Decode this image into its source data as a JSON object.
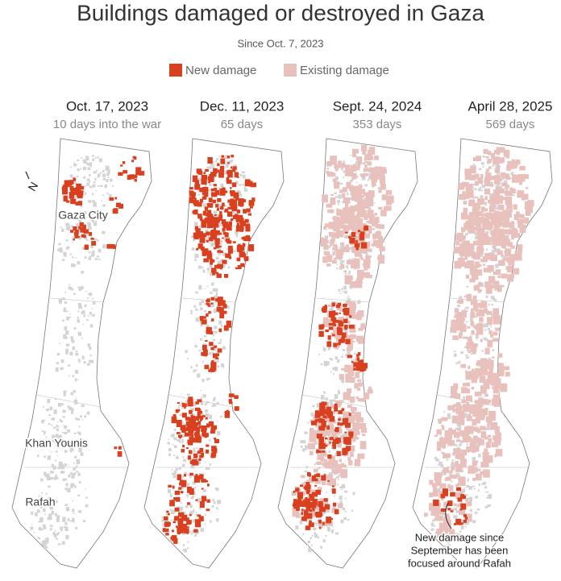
{
  "header": {
    "title": "Buildings damaged or destroyed in Gaza",
    "subtitle": "Since Oct. 7, 2023"
  },
  "legend": [
    {
      "label": "New damage",
      "color": "#d9401f"
    },
    {
      "label": "Existing damage",
      "color": "#e8c0bc"
    }
  ],
  "panels": [
    {
      "date": "Oct. 17, 2023",
      "caption": "10 days into the war"
    },
    {
      "date": "Dec. 11, 2023",
      "caption": "65 days"
    },
    {
      "date": "Sept. 24, 2024",
      "caption": "353 days"
    },
    {
      "date": "April 28, 2025",
      "caption": "569 days"
    }
  ],
  "map_labels": [
    "Gaza City",
    "Khan Younis",
    "Rafah"
  ],
  "compass": "N",
  "annotation": [
    "New damage since",
    "September has been",
    "focused around Rafah"
  ]
}
